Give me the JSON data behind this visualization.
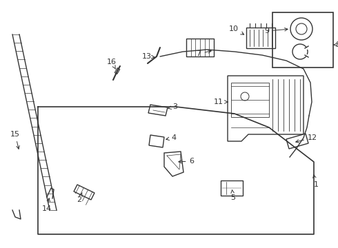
{
  "bg_color": "#ffffff",
  "fig_width": 4.9,
  "fig_height": 3.6,
  "dpi": 100,
  "line_color": "#333333",
  "label_font_size": 8.0
}
